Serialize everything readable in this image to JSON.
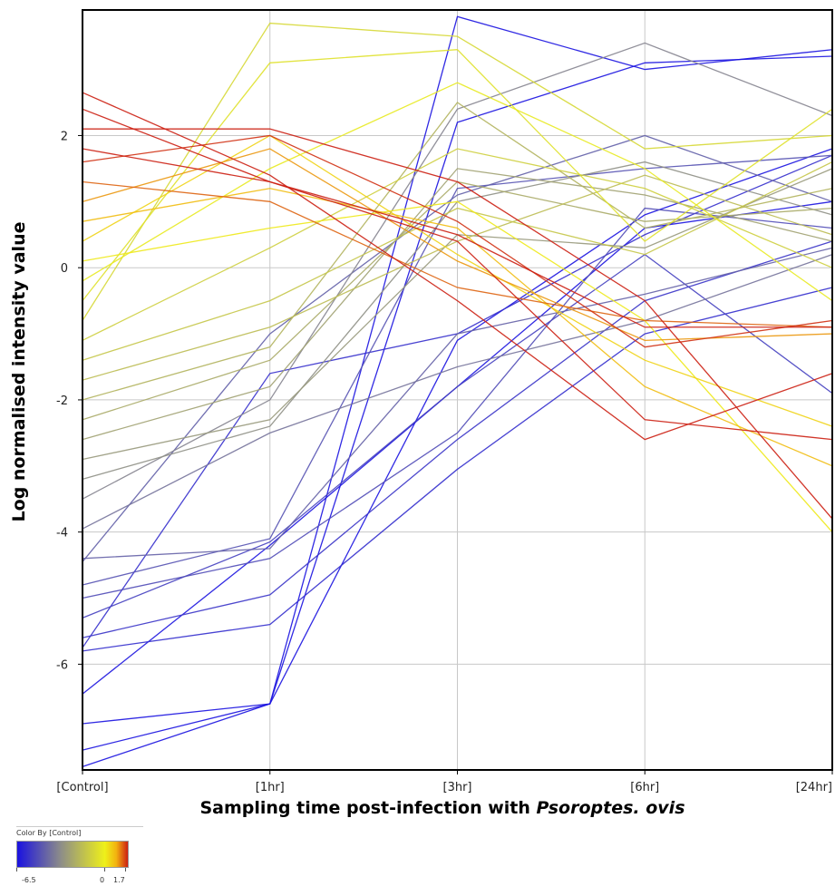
{
  "chart_data": {
    "type": "line",
    "ylabel": "Log normalised intensity value",
    "xlabel_prefix": "Sampling time post-infection with ",
    "xlabel_italic": "Psoroptes. ovis",
    "categories": [
      "[Control]",
      "[1hr]",
      "[3hr]",
      "[6hr]",
      "[24hr]"
    ],
    "ylim": [
      -7.6,
      3.9
    ],
    "yticks": [
      2,
      0,
      -2,
      -4,
      -6
    ],
    "grid": true,
    "color_scale": {
      "title": "Color By [Control]",
      "min": -6.5,
      "mid": 0,
      "max": 1.7,
      "min_label": "-6.5",
      "mid_label": "0",
      "max_label": "1.7",
      "colors": [
        "#1a12e0",
        "#8e8e88",
        "#eef01a",
        "#f2b20f",
        "#cc1f12"
      ]
    },
    "series": [
      {
        "values": [
          -7.55,
          -6.6,
          3.8,
          3.0,
          3.3
        ]
      },
      {
        "values": [
          -7.3,
          -6.6,
          2.2,
          3.1,
          3.2
        ]
      },
      {
        "values": [
          -6.9,
          -6.6,
          -1.1,
          0.8,
          1.8
        ]
      },
      {
        "values": [
          -6.45,
          -4.2,
          -1.8,
          0.6,
          1.0
        ]
      },
      {
        "values": [
          -5.8,
          -5.4,
          -3.05,
          -1.0,
          -0.3
        ]
      },
      {
        "values": [
          -5.75,
          -1.6,
          -1.0,
          0.5,
          1.7
        ]
      },
      {
        "values": [
          -5.6,
          -4.95,
          -2.6,
          -0.5,
          0.4
        ]
      },
      {
        "values": [
          -5.3,
          -4.15,
          -1.8,
          0.2,
          -1.9
        ]
      },
      {
        "values": [
          -5.0,
          -4.4,
          -2.5,
          0.9,
          0.6
        ]
      },
      {
        "values": [
          -4.8,
          -4.1,
          1.2,
          1.5,
          1.7
        ]
      },
      {
        "values": [
          -4.45,
          -1.0,
          1.1,
          2.0,
          1.0
        ]
      },
      {
        "values": [
          -4.4,
          -4.25,
          -1.0,
          -0.4,
          0.3
        ]
      },
      {
        "values": [
          -3.95,
          -2.5,
          -1.5,
          -0.8,
          0.2
        ]
      },
      {
        "values": [
          -3.5,
          -2.0,
          2.4,
          3.4,
          2.3
        ]
      },
      {
        "values": [
          -3.2,
          -2.4,
          1.0,
          1.6,
          0.8
        ]
      },
      {
        "values": [
          -2.9,
          -2.3,
          0.5,
          0.3,
          1.5
        ]
      },
      {
        "values": [
          -2.6,
          -1.8,
          1.5,
          1.1,
          0.4
        ]
      },
      {
        "values": [
          -2.3,
          -1.4,
          1.3,
          0.7,
          0.9
        ]
      },
      {
        "values": [
          -2.0,
          -1.2,
          2.5,
          0.6,
          1.2
        ]
      },
      {
        "values": [
          -1.7,
          -0.9,
          0.4,
          1.4,
          0.5
        ]
      },
      {
        "values": [
          -1.4,
          -0.5,
          0.9,
          0.2,
          1.6
        ]
      },
      {
        "values": [
          -1.1,
          0.3,
          1.8,
          1.2,
          0.0
        ]
      },
      {
        "values": [
          -0.8,
          3.7,
          3.5,
          1.8,
          2.0
        ]
      },
      {
        "values": [
          -0.5,
          3.1,
          3.3,
          0.4,
          2.4
        ]
      },
      {
        "values": [
          -0.2,
          1.5,
          2.8,
          1.5,
          -0.5
        ]
      },
      {
        "values": [
          0.1,
          0.6,
          1.0,
          -0.8,
          -4.0
        ]
      },
      {
        "values": [
          0.4,
          2.0,
          0.2,
          -1.4,
          -2.4
        ]
      },
      {
        "values": [
          0.7,
          1.2,
          0.6,
          -1.8,
          -3.0
        ]
      },
      {
        "values": [
          1.0,
          1.8,
          0.1,
          -1.1,
          -1.0
        ]
      },
      {
        "values": [
          1.3,
          1.0,
          -0.3,
          -0.8,
          -0.9
        ]
      },
      {
        "values": [
          1.6,
          2.0,
          0.7,
          -1.2,
          -0.8
        ]
      },
      {
        "values": [
          1.8,
          1.3,
          0.4,
          -2.3,
          -2.6
        ]
      },
      {
        "values": [
          2.1,
          2.1,
          1.3,
          -0.5,
          -3.8
        ]
      },
      {
        "values": [
          2.4,
          1.3,
          0.5,
          -0.9,
          -0.9
        ]
      },
      {
        "values": [
          2.65,
          1.4,
          -0.5,
          -2.6,
          -1.6
        ]
      }
    ]
  }
}
